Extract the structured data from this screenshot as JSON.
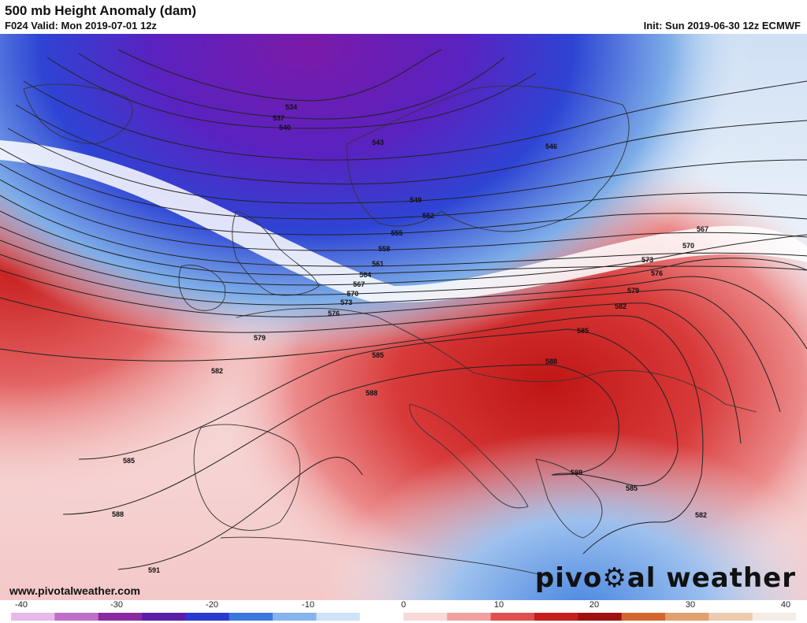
{
  "header": {
    "title": "500 mb Height Anomaly (dam)",
    "subtitle": "F024 Valid: Mon 2019-07-01 12z",
    "init": "Init: Sun 2019-06-30 12z ECMWF"
  },
  "footer": {
    "website": "www.pivotalweather.com",
    "brand_left": "pivo",
    "brand_right": "al weather"
  },
  "colorbar": {
    "ticks": [
      "-40",
      "-30",
      "-20",
      "-10",
      "0",
      "10",
      "20",
      "30",
      "40"
    ],
    "colors": [
      "#e8b8e8",
      "#c070c8",
      "#8a2aa0",
      "#5a1ea8",
      "#2a3ad0",
      "#3a78e0",
      "#86b4ec",
      "#d0e2f6",
      "#ffffff",
      "#f8d8d8",
      "#f0a0a0",
      "#e05050",
      "#c81e1e",
      "#a01010",
      "#d06830",
      "#e0a070",
      "#eecbb0",
      "#f4ece6"
    ]
  },
  "contours": [
    "534",
    "537",
    "540",
    "543",
    "546",
    "549",
    "552",
    "555",
    "558",
    "561",
    "564",
    "567",
    "570",
    "573",
    "576",
    "579",
    "582",
    "585",
    "588",
    "591"
  ]
}
